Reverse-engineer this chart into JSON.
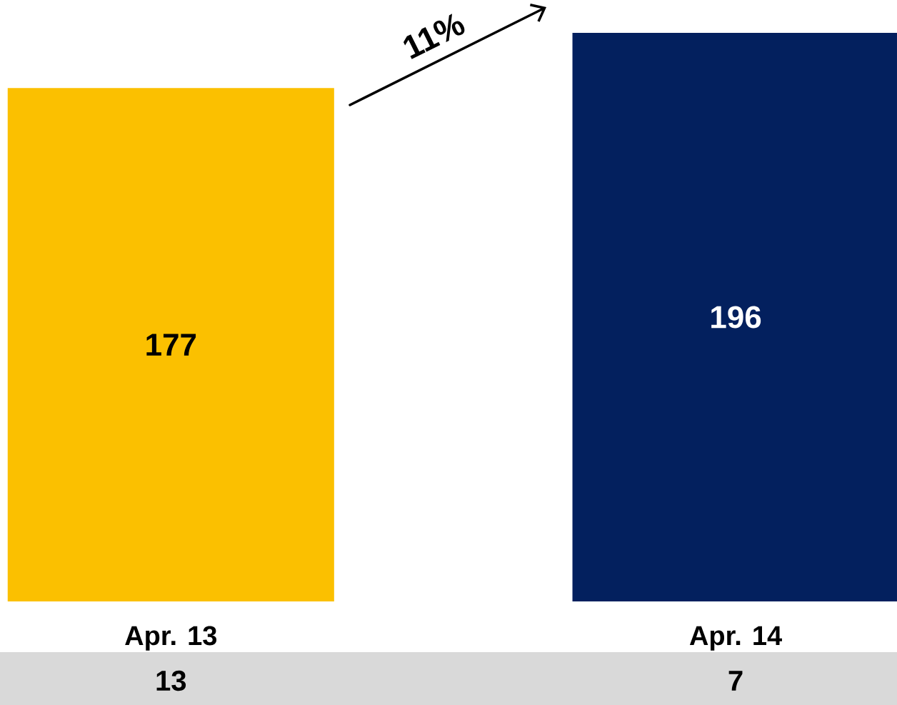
{
  "chart_data": {
    "type": "bar",
    "categories": [
      "Apr. 13",
      "Apr. 14"
    ],
    "values": [
      177,
      196
    ],
    "colors": [
      "#FBC000",
      "#03205E"
    ],
    "data_labels": true,
    "annotations": [
      "11%",
      "13",
      "7"
    ]
  }
}
